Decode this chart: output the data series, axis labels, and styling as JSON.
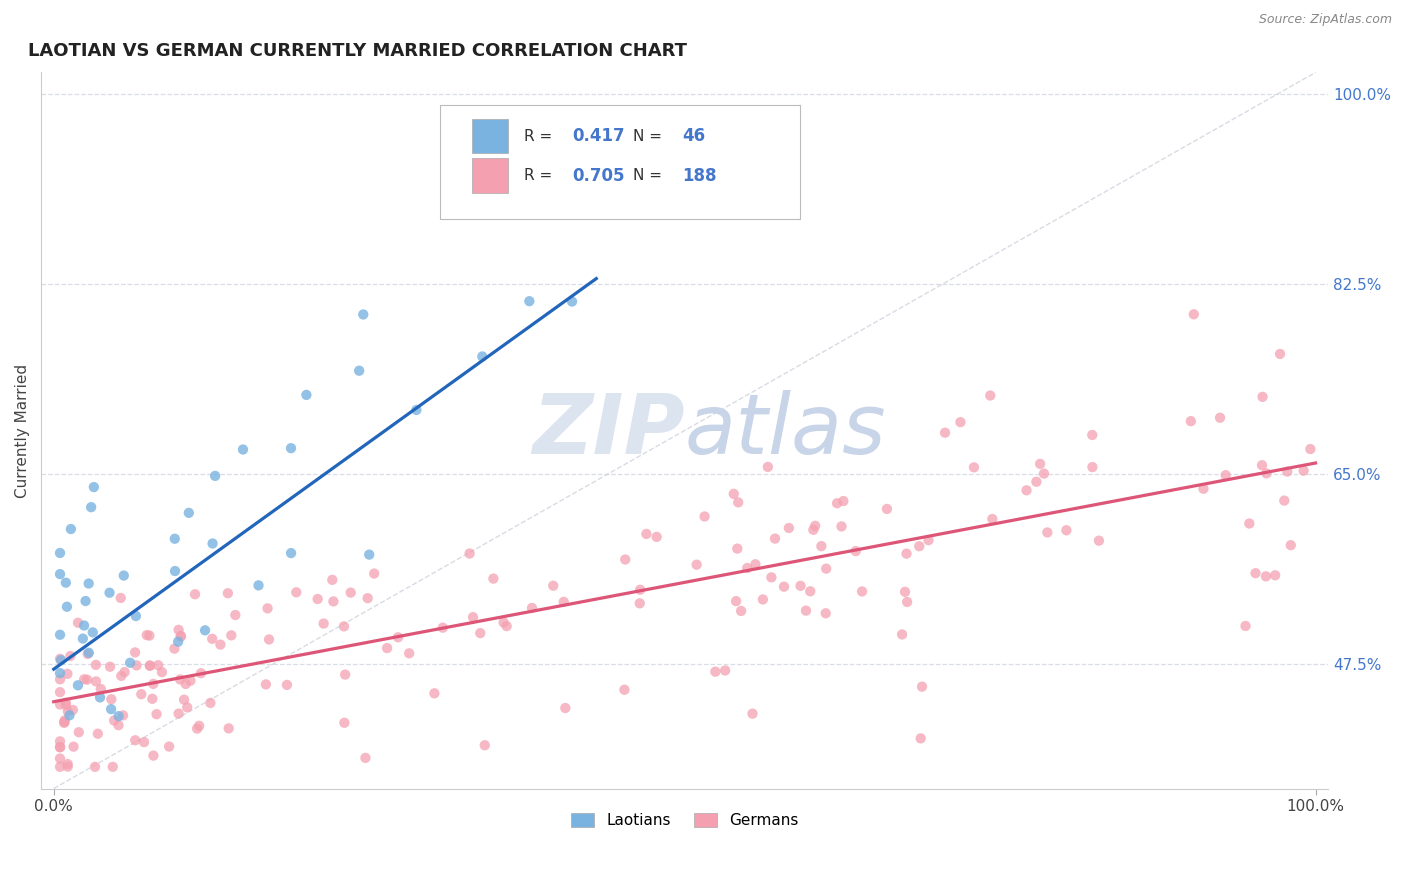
{
  "title": "LAOTIAN VS GERMAN CURRENTLY MARRIED CORRELATION CHART",
  "source_text": "Source: ZipAtlas.com",
  "ylabel": "Currently Married",
  "laotian_color": "#7ab3e0",
  "german_color": "#f4a0b0",
  "laotian_line_color": "#2266bb",
  "german_line_color": "#dd5577",
  "diagonal_color": "#c8ccd8",
  "watermark_color": "#dce4f0",
  "legend_R_laotian": "0.417",
  "legend_N_laotian": "46",
  "legend_R_german": "0.705",
  "legend_N_german": "188",
  "title_fontsize": 13,
  "label_fontsize": 11,
  "tick_fontsize": 11,
  "ytick_vals": [
    0.475,
    0.65,
    0.825,
    1.0
  ],
  "ytick_labels": [
    "47.5%",
    "65.0%",
    "82.5%",
    "100.0%"
  ],
  "grid_color": "#d8dde8",
  "ylim": [
    0.36,
    1.02
  ],
  "xlim": [
    -0.01,
    1.01
  ]
}
